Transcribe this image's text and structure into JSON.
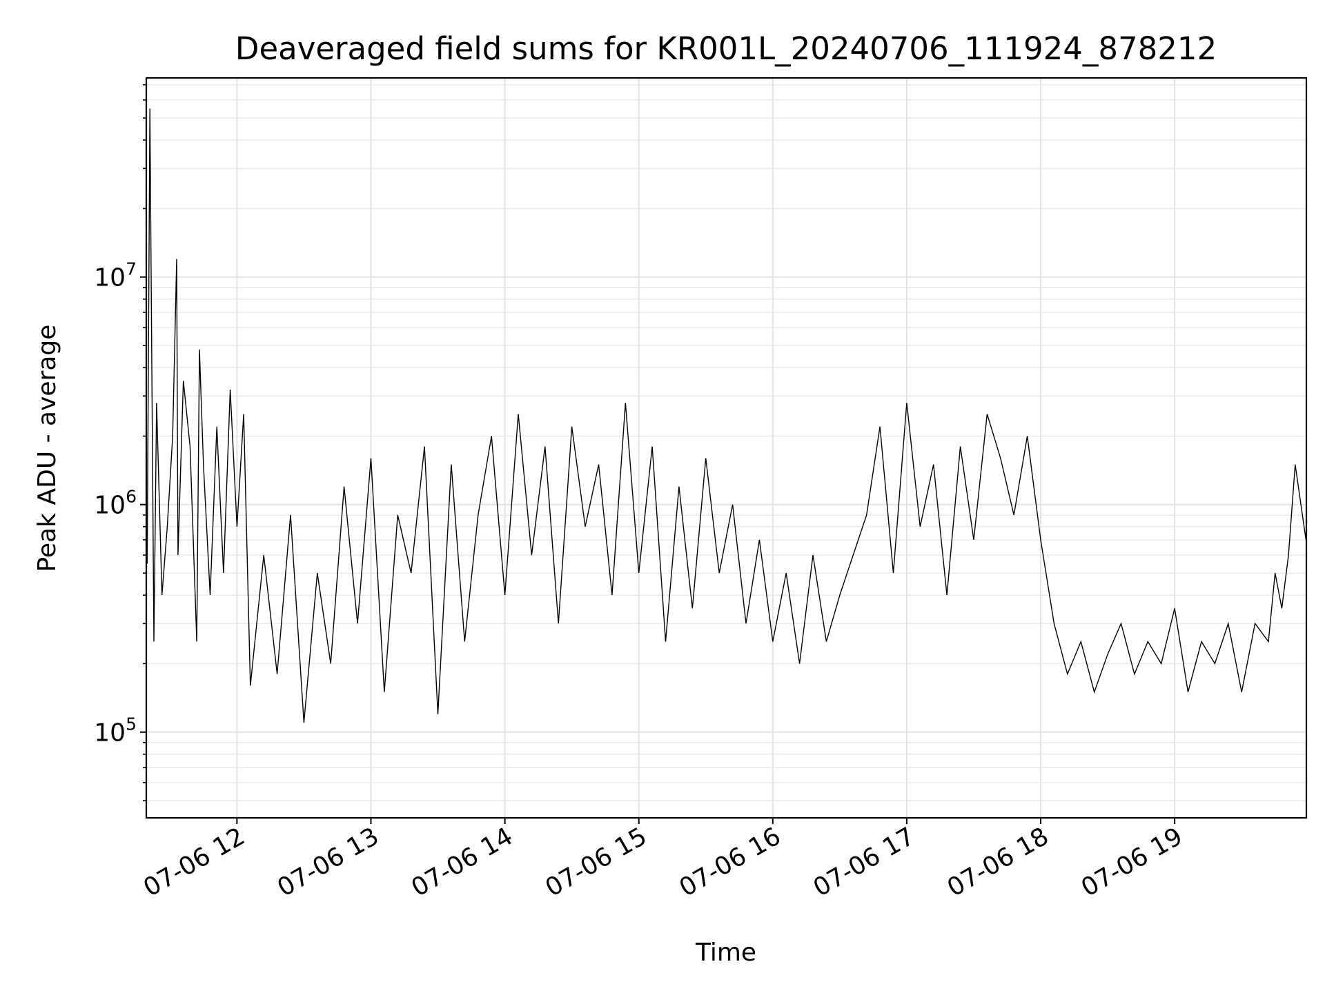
{
  "chart_data": {
    "type": "line",
    "title": "Deaveraged field sums for KR001L_20240706_111924_878212",
    "xlabel": "Time",
    "ylabel": "Peak ADU - average",
    "yscale": "log",
    "ylim": [
      42000,
      75000000
    ],
    "xlim": [
      "07-06 11:19:24",
      "07-06 19:59:00"
    ],
    "x_ticks": [
      "07-06 12",
      "07-06 13",
      "07-06 14",
      "07-06 15",
      "07-06 16",
      "07-06 17",
      "07-06 18",
      "07-06 19"
    ],
    "y_ticks": [
      {
        "base": "10",
        "exp": "5",
        "value": 100000
      },
      {
        "base": "10",
        "exp": "6",
        "value": 1000000
      },
      {
        "base": "10",
        "exp": "7",
        "value": 10000000
      }
    ],
    "grid": true,
    "series": [
      {
        "color": "#000000",
        "x_unit": "hours since 07-06 00:00",
        "x": [
          11.33,
          11.35,
          11.38,
          11.4,
          11.44,
          11.48,
          11.52,
          11.55,
          11.56,
          11.6,
          11.65,
          11.7,
          11.72,
          11.75,
          11.8,
          11.85,
          11.9,
          11.95,
          12.0,
          12.05,
          12.1,
          12.2,
          12.3,
          12.4,
          12.5,
          12.6,
          12.7,
          12.8,
          12.9,
          13.0,
          13.1,
          13.2,
          13.3,
          13.4,
          13.5,
          13.6,
          13.7,
          13.8,
          13.9,
          14.0,
          14.1,
          14.2,
          14.3,
          14.4,
          14.5,
          14.6,
          14.7,
          14.8,
          14.9,
          15.0,
          15.1,
          15.2,
          15.3,
          15.4,
          15.5,
          15.6,
          15.7,
          15.8,
          15.9,
          16.0,
          16.1,
          16.2,
          16.3,
          16.4,
          16.5,
          16.6,
          16.7,
          16.8,
          16.9,
          17.0,
          17.1,
          17.2,
          17.3,
          17.4,
          17.5,
          17.6,
          17.7,
          17.8,
          17.9,
          18.0,
          18.1,
          18.2,
          18.3,
          18.4,
          18.5,
          18.6,
          18.7,
          18.8,
          18.9,
          19.0,
          19.1,
          19.2,
          19.3,
          19.4,
          19.5,
          19.6,
          19.7,
          19.75,
          19.8,
          19.85,
          19.9,
          19.98
        ],
        "y": [
          550000,
          55000000,
          250000,
          2800000,
          400000,
          800000,
          2000000,
          12000000,
          600000,
          3500000,
          1800000,
          250000,
          4800000,
          1500000,
          400000,
          2200000,
          500000,
          3200000,
          800000,
          2500000,
          160000,
          600000,
          180000,
          900000,
          110000,
          500000,
          200000,
          1200000,
          300000,
          1600000,
          150000,
          900000,
          500000,
          1800000,
          120000,
          1500000,
          250000,
          900000,
          2000000,
          400000,
          2500000,
          600000,
          1800000,
          300000,
          2200000,
          800000,
          1500000,
          400000,
          2800000,
          500000,
          1800000,
          250000,
          1200000,
          350000,
          1600000,
          500000,
          1000000,
          300000,
          700000,
          250000,
          500000,
          200000,
          600000,
          250000,
          400000,
          600000,
          900000,
          2200000,
          500000,
          2800000,
          800000,
          1500000,
          400000,
          1800000,
          700000,
          2500000,
          1600000,
          900000,
          2000000,
          700000,
          300000,
          180000,
          250000,
          150000,
          220000,
          300000,
          180000,
          250000,
          200000,
          350000,
          150000,
          250000,
          200000,
          300000,
          150000,
          300000,
          250000,
          500000,
          350000,
          600000,
          1500000,
          700000
        ]
      }
    ]
  }
}
